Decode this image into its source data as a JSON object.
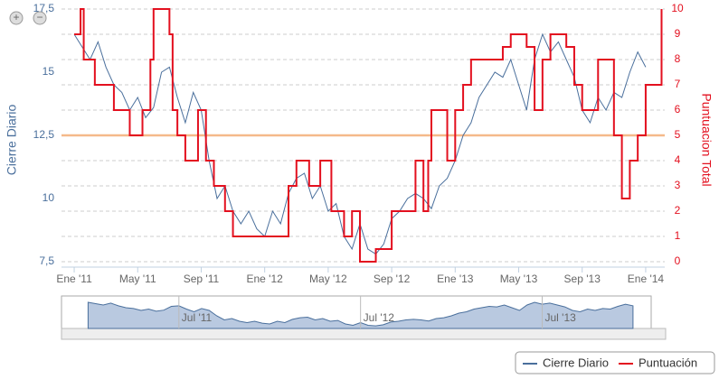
{
  "chart_data": {
    "type": "line",
    "xlim": [
      -0.8,
      37.2
    ],
    "xticks": [
      {
        "value": 0,
        "label": "Ene '11"
      },
      {
        "value": 4,
        "label": "May '11"
      },
      {
        "value": 8,
        "label": "Sep '11"
      },
      {
        "value": 12,
        "label": "Ene '12"
      },
      {
        "value": 16,
        "label": "May '12"
      },
      {
        "value": 20,
        "label": "Sep '12"
      },
      {
        "value": 24,
        "label": "Ene '13"
      },
      {
        "value": 28,
        "label": "May '13"
      },
      {
        "value": 32,
        "label": "Sep '13"
      },
      {
        "value": 36,
        "label": "Ene '14"
      }
    ],
    "ylabel": "Cierre Diario",
    "ylim": [
      7.5,
      17.5
    ],
    "yticks": [
      {
        "value": 7.5,
        "label": "7,5"
      },
      10,
      {
        "value": 12.5,
        "label": "12,5"
      },
      15,
      {
        "value": 17.5,
        "label": "17,5"
      }
    ],
    "y2label": "Puntuacion Total",
    "y2lim": [
      0,
      10
    ],
    "y2ticks": [
      0,
      1,
      2,
      3,
      4,
      5,
      6,
      7,
      8,
      9,
      10
    ],
    "plot_line": 12.5,
    "grid": true,
    "series": [
      {
        "name": "Cierre Diario",
        "color": "#4a6f9c",
        "x": [
          0,
          0.5,
          1,
          1.5,
          2,
          2.5,
          3,
          3.5,
          4,
          4.5,
          5,
          5.5,
          6,
          6.5,
          7,
          7.5,
          8,
          8.5,
          9,
          9.5,
          10,
          10.5,
          11,
          11.5,
          12,
          12.5,
          13,
          13.5,
          14,
          14.5,
          15,
          15.5,
          16,
          16.5,
          17,
          17.5,
          18,
          18.5,
          19,
          19.5,
          20,
          20.5,
          21,
          21.5,
          22,
          22.5,
          23,
          23.5,
          24,
          24.5,
          25,
          25.5,
          26,
          26.5,
          27,
          27.5,
          28,
          28.5,
          29,
          29.5,
          30,
          30.5,
          31,
          31.5,
          32,
          32.5,
          33,
          33.5,
          34,
          34.5,
          35,
          35.5,
          36
        ],
        "values": [
          16.5,
          16.0,
          15.5,
          16.2,
          15.2,
          14.5,
          14.2,
          13.5,
          14.0,
          13.2,
          13.6,
          15.0,
          15.2,
          14.0,
          13.0,
          14.2,
          13.5,
          11.5,
          10.0,
          10.5,
          9.5,
          9.0,
          9.5,
          8.8,
          8.5,
          9.5,
          9.0,
          10.2,
          10.8,
          11.0,
          10.0,
          10.5,
          9.5,
          9.8,
          8.5,
          8.0,
          9.0,
          8.0,
          7.8,
          8.2,
          9.2,
          9.5,
          10.0,
          10.2,
          10.0,
          9.6,
          10.5,
          10.8,
          11.5,
          12.5,
          13.0,
          14.0,
          14.5,
          15.0,
          14.8,
          15.5,
          14.5,
          13.5,
          15.5,
          16.5,
          15.8,
          16.2,
          15.5,
          14.8,
          13.5,
          13.0,
          14.0,
          13.5,
          14.2,
          14.0,
          15.0,
          15.8,
          15.2
        ]
      },
      {
        "name": "Puntuación",
        "color": "#e3101f",
        "axis": "y2",
        "step": true,
        "x": [
          0,
          0.4,
          0.6,
          1.3,
          2.5,
          3.5,
          4.3,
          4.8,
          5,
          6,
          6.2,
          6.5,
          7,
          7.8,
          8.3,
          8.8,
          9.5,
          10,
          13,
          13.5,
          14,
          14.8,
          15.5,
          16.2,
          17,
          17.5,
          18,
          19,
          20,
          21.5,
          22,
          22.3,
          22.5,
          23.5,
          24,
          24.5,
          25,
          27,
          27.5,
          28.5,
          29,
          29.5,
          30,
          31,
          31.5,
          32,
          33,
          34,
          34.5,
          35,
          35.5,
          36,
          37
        ],
        "values": [
          9,
          10,
          8,
          7,
          6,
          5,
          6,
          8,
          10,
          9,
          6,
          5,
          4,
          6,
          4,
          3,
          2,
          1,
          1,
          3,
          4,
          3,
          4,
          2,
          1,
          2,
          0,
          0.5,
          2,
          4,
          2,
          4,
          6,
          4,
          6,
          7,
          8,
          8.5,
          9,
          8.5,
          6,
          8,
          9,
          8.5,
          7,
          6,
          8,
          5,
          2.5,
          4,
          5,
          7,
          10
        ]
      }
    ],
    "navigator_ticks": [
      {
        "value": 6,
        "label": "Jul '11"
      },
      {
        "value": 18,
        "label": "Jul '12"
      },
      {
        "value": 30,
        "label": "Jul '13"
      }
    ]
  }
}
